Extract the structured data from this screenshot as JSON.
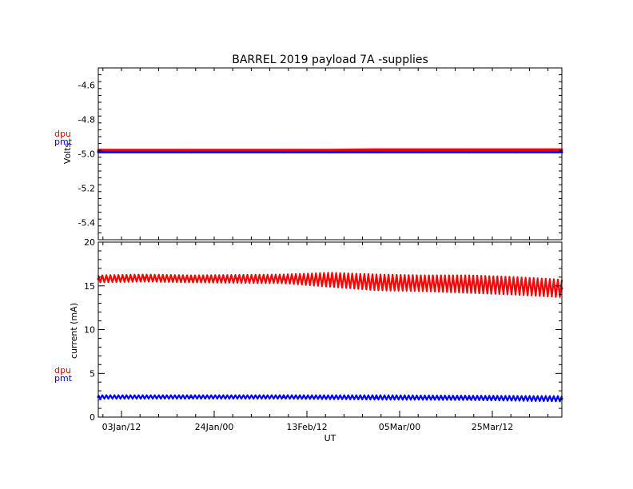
{
  "chart_data": [
    {
      "type": "line",
      "title": "BARREL 2019 payload 7A -supplies",
      "ylabel": "Volts",
      "ylim": [
        -5.5,
        -4.5
      ],
      "yticks": [
        -4.6,
        -4.8,
        -5.0,
        -5.2,
        -5.4
      ],
      "ytick_labels": [
        "-4.6",
        "-4.8",
        "-5.0",
        "-5.2",
        "-5.4"
      ],
      "xlim": [
        0,
        100
      ],
      "legend": [
        "dpu",
        "pmt"
      ],
      "legend_placement": "left",
      "series": [
        {
          "name": "dpu",
          "color": "#ff0000",
          "x": [
            0,
            20,
            40,
            50,
            60,
            70,
            80,
            90,
            100
          ],
          "values": [
            -4.98,
            -4.98,
            -4.98,
            -4.98,
            -4.977,
            -4.977,
            -4.977,
            -4.977,
            -4.977
          ]
        },
        {
          "name": "pmt",
          "color": "#0000ff",
          "x": [
            0,
            20,
            40,
            50,
            60,
            70,
            80,
            90,
            100
          ],
          "values": [
            -4.99,
            -4.99,
            -4.99,
            -4.99,
            -4.99,
            -4.99,
            -4.99,
            -4.99,
            -4.99
          ]
        }
      ]
    },
    {
      "type": "line",
      "ylabel": "current (mA)",
      "xlabel": "UT",
      "ylim": [
        0,
        20
      ],
      "yticks": [
        0,
        5,
        10,
        15,
        20
      ],
      "ytick_labels": [
        "0",
        "5",
        "10",
        "15",
        "20"
      ],
      "xlim": [
        0,
        100
      ],
      "xticks": [
        5,
        25,
        45,
        65,
        85
      ],
      "xtick_labels": [
        "03Jan/12",
        "24Jan/00",
        "13Feb/12",
        "05Mar/00",
        "25Mar/12"
      ],
      "legend": [
        "dpu",
        "pmt"
      ],
      "legend_placement": "left",
      "series": [
        {
          "name": "dpu",
          "color": "#ff0000",
          "x": [
            0,
            10,
            20,
            30,
            40,
            50,
            60,
            70,
            80,
            90,
            100
          ],
          "values": [
            15.8,
            15.9,
            15.8,
            15.8,
            15.8,
            15.7,
            15.4,
            15.3,
            15.2,
            15.0,
            14.7
          ],
          "spread": [
            0.4,
            0.4,
            0.4,
            0.45,
            0.5,
            0.8,
            0.9,
            0.9,
            1.0,
            1.0,
            1.0
          ]
        },
        {
          "name": "pmt",
          "color": "#0000ff",
          "x": [
            0,
            20,
            40,
            60,
            80,
            100
          ],
          "values": [
            2.3,
            2.3,
            2.3,
            2.25,
            2.2,
            2.1
          ],
          "spread": [
            0.2,
            0.2,
            0.2,
            0.25,
            0.25,
            0.3
          ]
        }
      ]
    }
  ]
}
